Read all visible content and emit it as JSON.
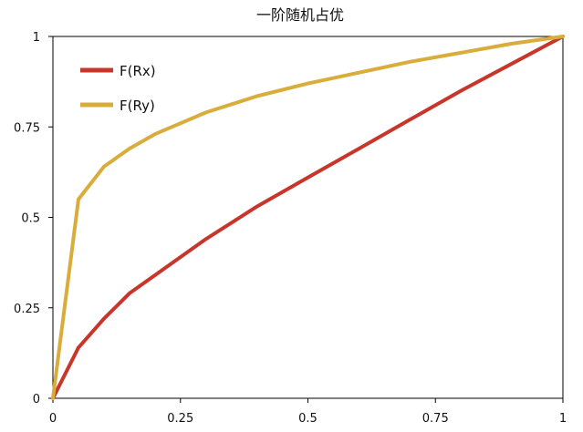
{
  "chart_data": {
    "type": "line",
    "title": "一阶随机占优",
    "xlabel": "",
    "ylabel": "",
    "xlim": [
      0,
      1
    ],
    "ylim": [
      0,
      1
    ],
    "xticks": [
      "0",
      "0.25",
      "0.5",
      "0.75",
      "1"
    ],
    "yticks": [
      "0",
      "0.25",
      "0.5",
      "0.75",
      "1"
    ],
    "grid": false,
    "legend_position": "top-left",
    "series": [
      {
        "name": "F(Rx)",
        "color": "#c8362b",
        "x": [
          0,
          0.05,
          0.1,
          0.15,
          0.2,
          0.3,
          0.4,
          0.5,
          0.6,
          0.7,
          0.8,
          0.9,
          1.0
        ],
        "y": [
          0,
          0.14,
          0.22,
          0.29,
          0.34,
          0.44,
          0.53,
          0.61,
          0.69,
          0.77,
          0.85,
          0.925,
          1.0
        ]
      },
      {
        "name": "F(Ry)",
        "color": "#d9ad3b",
        "x": [
          0,
          0.05,
          0.1,
          0.15,
          0.2,
          0.3,
          0.4,
          0.5,
          0.6,
          0.7,
          0.8,
          0.9,
          1.0
        ],
        "y": [
          0,
          0.55,
          0.64,
          0.69,
          0.73,
          0.79,
          0.835,
          0.87,
          0.9,
          0.93,
          0.955,
          0.98,
          1.0
        ]
      }
    ]
  }
}
